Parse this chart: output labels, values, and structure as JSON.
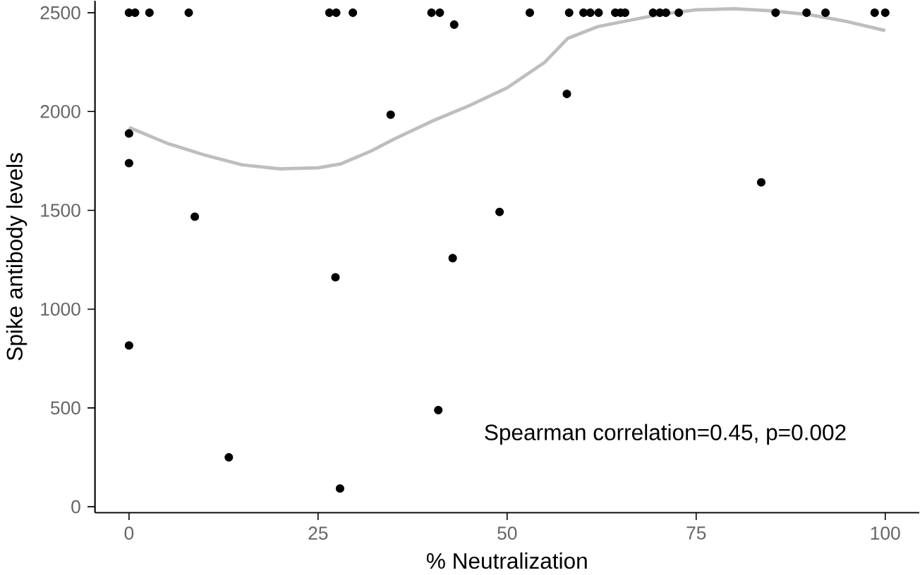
{
  "chart_data": {
    "type": "scatter",
    "xlabel": "% Neutralization",
    "ylabel": "Spike antibody levels",
    "annotations": [
      "Spearman correlation=0.45, p=0.002"
    ],
    "xlim": [
      -4.5,
      104.5
    ],
    "ylim": [
      -30,
      2560
    ],
    "xticks": [
      0,
      25,
      50,
      75,
      100
    ],
    "yticks": [
      0,
      500,
      1000,
      1500,
      2000,
      2500
    ],
    "grid": false,
    "series": [
      {
        "marker": "circle",
        "color": "#000000",
        "x": [
          0,
          0.8,
          2.7,
          7.9,
          26.5,
          27.4,
          29.6,
          40.0,
          41.1,
          43.0,
          53,
          58.2,
          60.1,
          61.0,
          62.1,
          64.3,
          65.0,
          65.6,
          69.3,
          70.2,
          71.0,
          72.7,
          85.5,
          89.6,
          92.1,
          98.6,
          100,
          0,
          0,
          8.7,
          34.6,
          57.9,
          83.6,
          49.0,
          42.8,
          27.3,
          0,
          40.9,
          13.2,
          27.9
        ],
        "values": [
          2500,
          2500,
          2500,
          2500,
          2500,
          2500,
          2500,
          2500,
          2500,
          2440,
          2500,
          2500,
          2500,
          2500,
          2500,
          2500,
          2500,
          2500,
          2500,
          2500,
          2500,
          2500,
          2500,
          2500,
          2500,
          2500,
          2500,
          1889,
          1739,
          1468,
          1984,
          2089,
          1642,
          1492,
          1258,
          1161,
          816,
          489,
          250,
          92
        ]
      },
      {
        "type": "line",
        "color": "#bebebe",
        "marker": "none",
        "line_style": "solid",
        "x": [
          0,
          5,
          10,
          15,
          20,
          25,
          28,
          32,
          35,
          40,
          45,
          50,
          55,
          58,
          62,
          66,
          70,
          75,
          80,
          85,
          90,
          95,
          100
        ],
        "values": [
          1920,
          1840,
          1780,
          1730,
          1710,
          1715,
          1735,
          1800,
          1860,
          1950,
          2030,
          2120,
          2250,
          2370,
          2430,
          2460,
          2490,
          2515,
          2520,
          2510,
          2490,
          2455,
          2410
        ]
      }
    ]
  }
}
